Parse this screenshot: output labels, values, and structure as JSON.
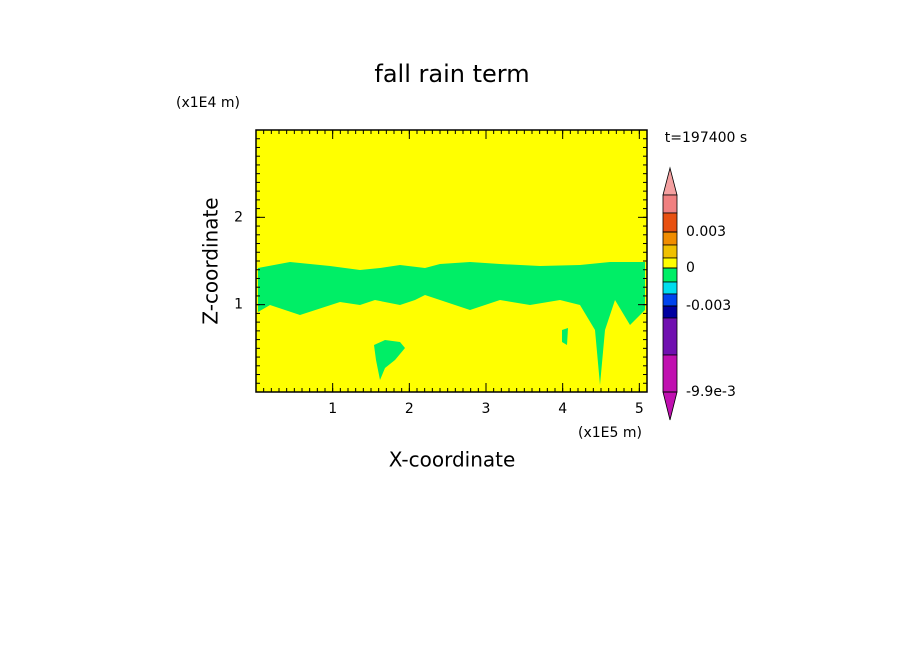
{
  "chart_data": {
    "type": "contour",
    "title": "fall rain term",
    "xlabel": "X-coordinate",
    "ylabel": "Z-coordinate",
    "xunit": "(x1E5 m)",
    "yunit": "(x1E4 m)",
    "time_label": "t=197400 s",
    "xlim": [
      0,
      5.1
    ],
    "ylim": [
      0,
      3
    ],
    "xticks": [
      1,
      2,
      3,
      4,
      5
    ],
    "yticks": [
      1,
      2
    ],
    "background_color": "#ffff00",
    "field_color": "#00ee66",
    "colorbar": {
      "colors": [
        "#f4a0a0",
        "#f08080",
        "#e85010",
        "#f08c00",
        "#f0c000",
        "#ffff00",
        "#00ee66",
        "#00ddee",
        "#0044ee",
        "#0000a0",
        "#7010b0",
        "#c010b0",
        "#c010b0"
      ],
      "ticks": [
        0.003,
        0,
        -0.003,
        {
          "value": -0.0099,
          "label": "-9.9e-3"
        }
      ]
    }
  }
}
